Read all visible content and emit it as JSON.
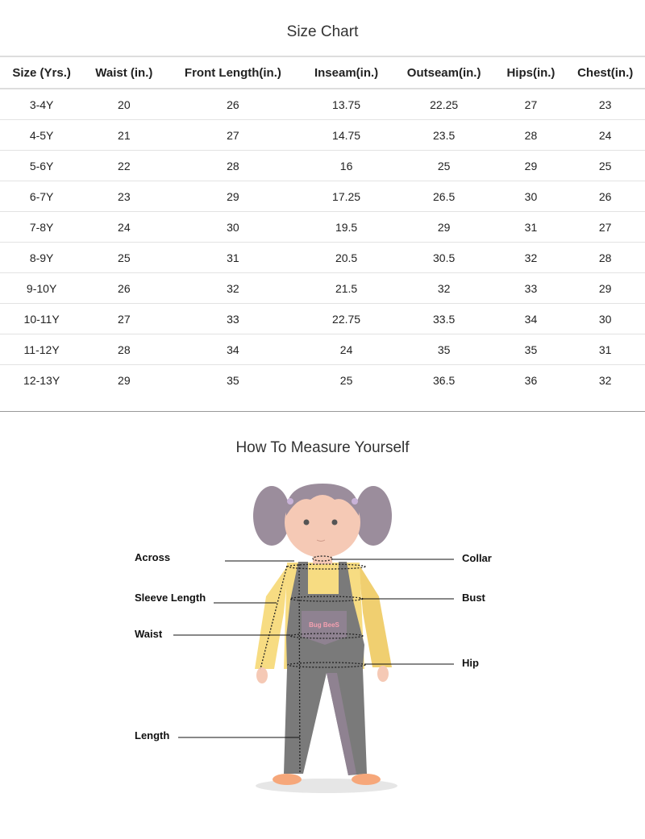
{
  "size_chart": {
    "title": "Size Chart",
    "columns": [
      "Size (Yrs.)",
      "Waist (in.)",
      "Front Length(in.)",
      "Inseam(in.)",
      "Outseam(in.)",
      "Hips(in.)",
      "Chest(in.)"
    ],
    "rows": [
      [
        "3-4Y",
        "20",
        "26",
        "13.75",
        "22.25",
        "27",
        "23"
      ],
      [
        "4-5Y",
        "21",
        "27",
        "14.75",
        "23.5",
        "28",
        "24"
      ],
      [
        "5-6Y",
        "22",
        "28",
        "16",
        "25",
        "29",
        "25"
      ],
      [
        "6-7Y",
        "23",
        "29",
        "17.25",
        "26.5",
        "30",
        "26"
      ],
      [
        "7-8Y",
        "24",
        "30",
        "19.5",
        "29",
        "31",
        "27"
      ],
      [
        "8-9Y",
        "25",
        "31",
        "20.5",
        "30.5",
        "32",
        "28"
      ],
      [
        "9-10Y",
        "26",
        "32",
        "21.5",
        "32",
        "33",
        "29"
      ],
      [
        "10-11Y",
        "27",
        "33",
        "22.75",
        "33.5",
        "34",
        "30"
      ],
      [
        "11-12Y",
        "28",
        "34",
        "24",
        "35",
        "35",
        "31"
      ],
      [
        "12-13Y",
        "29",
        "35",
        "25",
        "36.5",
        "36",
        "32"
      ]
    ]
  },
  "measure": {
    "title": "How To Measure Yourself",
    "labels": {
      "across": "Across",
      "sleeve": "Sleeve Length",
      "waist": "Waist",
      "length": "Length",
      "collar": "Collar",
      "bust": "Bust",
      "hip": "Hip"
    },
    "pocket_logo": "Bug BeeS"
  },
  "colors": {
    "shirt": "#f7dc82",
    "overalls": "#7a7a7a",
    "hair": "#9b8d9c",
    "skin": "#f5c9b5"
  }
}
